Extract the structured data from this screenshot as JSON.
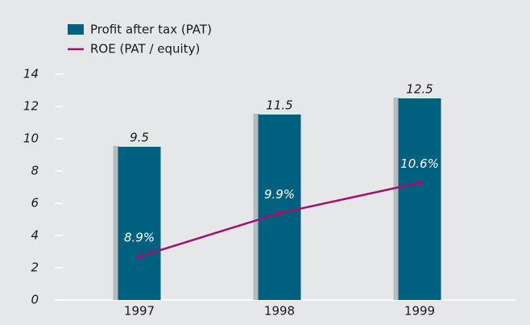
{
  "chart_data": {
    "type": "bar",
    "categories": [
      "1997",
      "1998",
      "1999"
    ],
    "series": [
      {
        "name": "Profit after tax (PAT)",
        "type": "bar",
        "color": "#00607f",
        "values": [
          9.5,
          11.5,
          12.5
        ]
      },
      {
        "name": "ROE (PAT / equity)",
        "type": "line",
        "axis": "y2",
        "color": "#a3106b",
        "values": [
          8.9,
          9.9,
          10.6
        ],
        "value_labels": [
          "8.9%",
          "9.9%",
          "10.6%"
        ]
      }
    ],
    "ylim": [
      0,
      14
    ],
    "yticks": [
      0,
      2,
      4,
      6,
      8,
      10,
      12,
      14
    ],
    "y2lim": [
      7.9,
      13.1
    ],
    "legend": "top-left"
  }
}
